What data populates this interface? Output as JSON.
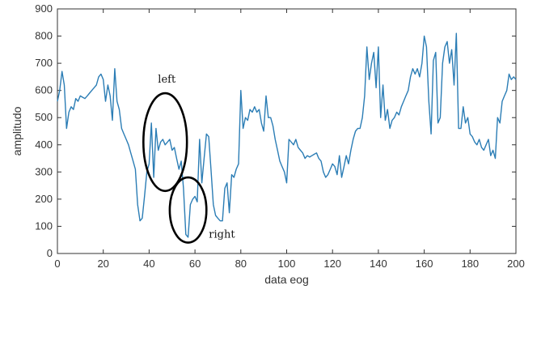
{
  "chart_data": {
    "type": "line",
    "title": "",
    "xlabel": "data eog",
    "ylabel": "amplitudo",
    "xlim": [
      0,
      200
    ],
    "ylim": [
      0,
      900
    ],
    "xticks": [
      0,
      20,
      40,
      60,
      80,
      100,
      120,
      140,
      160,
      180,
      200
    ],
    "yticks": [
      0,
      100,
      200,
      300,
      400,
      500,
      600,
      700,
      800,
      900
    ],
    "xtick_labels": [
      "0",
      "20",
      "40",
      "60",
      "80",
      "100",
      "120",
      "140",
      "160",
      "180",
      "200"
    ],
    "ytick_labels": [
      "0",
      "100",
      "200",
      "300",
      "400",
      "500",
      "600",
      "700",
      "800",
      "900"
    ],
    "grid": false,
    "line_color": "#2b7db5",
    "series": [
      {
        "x": [
          0,
          1,
          2,
          3,
          4,
          5,
          6,
          7,
          8,
          9,
          10,
          11,
          12,
          13,
          14,
          15,
          16,
          17,
          18,
          19,
          20,
          21,
          22,
          23,
          24,
          25,
          26,
          27,
          28,
          29,
          30,
          31,
          32,
          33,
          34,
          35,
          36,
          37,
          38,
          39,
          40,
          41,
          42,
          43,
          44,
          45,
          46,
          47,
          48,
          49,
          50,
          51,
          52,
          53,
          54,
          55,
          56,
          57,
          58,
          59,
          60,
          61,
          62,
          63,
          64,
          65,
          66,
          67,
          68,
          69,
          70,
          71,
          72,
          73,
          74,
          75,
          76,
          77,
          78,
          79,
          80,
          81,
          82,
          83,
          84,
          85,
          86,
          87,
          88,
          89,
          90,
          91,
          92,
          93,
          94,
          95,
          96,
          97,
          98,
          99,
          100,
          101,
          102,
          103,
          104,
          105,
          106,
          107,
          108,
          109,
          110,
          111,
          112,
          113,
          114,
          115,
          116,
          117,
          118,
          119,
          120,
          121,
          122,
          123,
          124,
          125,
          126,
          127,
          128,
          129,
          130,
          131,
          132,
          133,
          134,
          135,
          136,
          137,
          138,
          139,
          140,
          141,
          142,
          143,
          144,
          145,
          146,
          147,
          148,
          149,
          150,
          151,
          152,
          153,
          154,
          155,
          156,
          157,
          158,
          159,
          160,
          161,
          162,
          163,
          164,
          165,
          166,
          167,
          168,
          169,
          170,
          171,
          172,
          173,
          174,
          175,
          176,
          177,
          178,
          179,
          180,
          181,
          182,
          183,
          184,
          185,
          186,
          187,
          188,
          189,
          190,
          191,
          192,
          193,
          194,
          195,
          196,
          197,
          198,
          199,
          200
        ],
        "y": [
          560,
          600,
          670,
          620,
          460,
          520,
          540,
          530,
          570,
          560,
          580,
          575,
          570,
          580,
          590,
          600,
          610,
          620,
          650,
          660,
          640,
          560,
          620,
          580,
          490,
          680,
          560,
          530,
          460,
          440,
          420,
          400,
          370,
          340,
          310,
          180,
          120,
          130,
          210,
          300,
          330,
          480,
          280,
          460,
          380,
          410,
          420,
          400,
          410,
          420,
          380,
          390,
          350,
          310,
          340,
          240,
          70,
          60,
          180,
          200,
          210,
          190,
          420,
          260,
          350,
          440,
          430,
          310,
          180,
          140,
          130,
          120,
          120,
          240,
          260,
          150,
          290,
          280,
          310,
          330,
          600,
          460,
          500,
          490,
          530,
          520,
          540,
          520,
          530,
          480,
          450,
          580,
          500,
          500,
          470,
          420,
          380,
          340,
          320,
          300,
          260,
          420,
          410,
          400,
          420,
          390,
          380,
          370,
          350,
          360,
          355,
          360,
          365,
          370,
          350,
          340,
          300,
          280,
          290,
          310,
          330,
          320,
          290,
          360,
          280,
          320,
          360,
          330,
          380,
          420,
          450,
          460,
          460,
          500,
          580,
          760,
          640,
          700,
          740,
          610,
          760,
          500,
          620,
          490,
          530,
          460,
          490,
          500,
          520,
          510,
          540,
          560,
          580,
          600,
          650,
          680,
          660,
          680,
          650,
          700,
          800,
          760,
          560,
          440,
          710,
          740,
          480,
          500,
          700,
          760,
          780,
          700,
          750,
          620,
          810,
          460,
          460,
          540,
          480,
          500,
          440,
          430,
          410,
          400,
          420,
          390,
          380,
          400,
          420,
          360,
          380,
          350,
          500,
          480,
          560,
          580,
          600,
          660,
          640,
          650,
          640
        ]
      }
    ],
    "annotations": [
      {
        "text": "left",
        "x": 47,
        "y": 410,
        "rx": 9.5,
        "ry": 180
      },
      {
        "text": "right",
        "x": 57,
        "y": 160,
        "rx": 8,
        "ry": 120
      }
    ]
  }
}
